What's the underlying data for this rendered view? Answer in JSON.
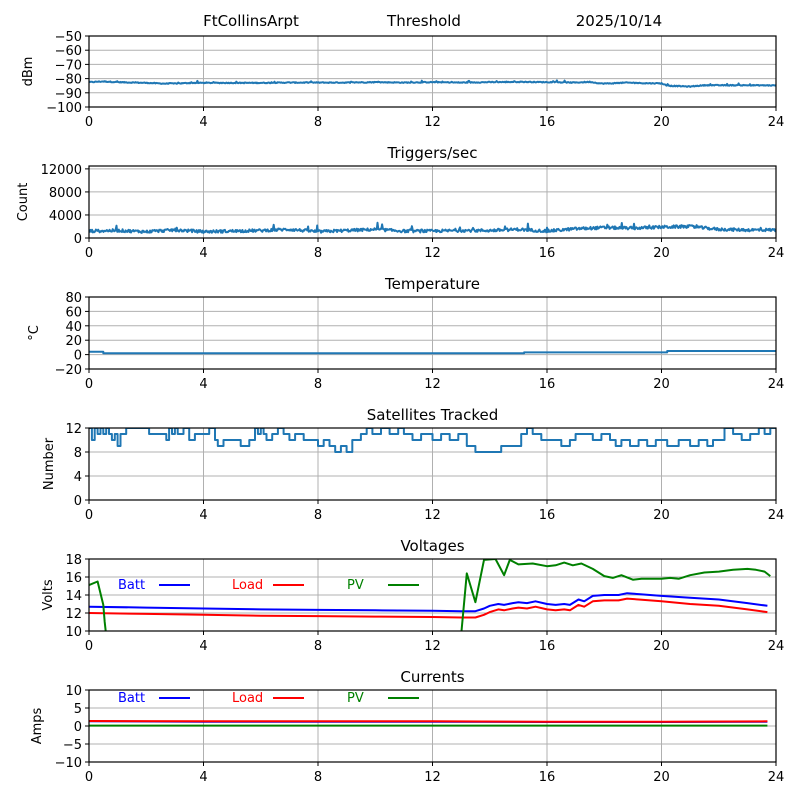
{
  "header": {
    "station": "FtCollinsArpt",
    "metric": "Threshold",
    "date": "2025/10/14"
  },
  "colors": {
    "series_default": "#1f77b4",
    "batt": "#0000ff",
    "load": "#ff0000",
    "pv": "#008000",
    "grid": "#b0b0b0"
  },
  "chart_data": [
    {
      "id": "threshold",
      "type": "line",
      "title": "",
      "xlabel": "",
      "ylabel": "dBm",
      "xlim": [
        0,
        24
      ],
      "ylim": [
        -100,
        -50
      ],
      "xticks": [
        0,
        4,
        8,
        12,
        16,
        20,
        24
      ],
      "yticks": [
        -100,
        -90,
        -80,
        -70,
        -60,
        -50
      ],
      "ytick_labels": [
        "−100",
        "−90",
        "−80",
        "−70",
        "−60",
        "−50"
      ],
      "grid": true,
      "noise": 0.6,
      "series": [
        {
          "name": "Threshold",
          "color": "#1f77b4",
          "x": [
            0,
            0.5,
            1,
            2,
            2.6,
            3,
            3.6,
            4,
            5,
            6,
            7,
            8,
            9,
            10,
            11,
            12,
            13,
            14,
            15,
            16,
            17,
            17.5,
            17.9,
            18.3,
            18.8,
            19.5,
            20,
            20.2,
            20.6,
            21,
            21.3,
            21.6,
            22,
            23,
            24
          ],
          "y": [
            -82.5,
            -82,
            -82.5,
            -83,
            -83.5,
            -83.5,
            -83,
            -83,
            -83,
            -83,
            -82.8,
            -82.8,
            -82.8,
            -82.5,
            -82.8,
            -82.5,
            -82.8,
            -82.5,
            -82.3,
            -82.5,
            -82.8,
            -82.3,
            -83.5,
            -83.3,
            -82.8,
            -83.3,
            -83.3,
            -85,
            -85.3,
            -85.6,
            -85,
            -84.6,
            -84.7,
            -84.7,
            -84.8
          ]
        }
      ]
    },
    {
      "id": "triggers",
      "type": "line",
      "title": "Triggers/sec",
      "xlabel": "",
      "ylabel": "Count",
      "xlim": [
        0,
        24
      ],
      "ylim": [
        0,
        12500
      ],
      "xticks": [
        0,
        4,
        8,
        12,
        16,
        20,
        24
      ],
      "yticks": [
        0,
        4000,
        8000,
        12000
      ],
      "ytick_labels": [
        "0",
        "4000",
        "8000",
        "12000"
      ],
      "grid": true,
      "noise": 500,
      "series": [
        {
          "name": "Triggers/sec",
          "color": "#1f77b4",
          "x": [
            0,
            1,
            2,
            3,
            4,
            5,
            6,
            7,
            8,
            9,
            10,
            11,
            12,
            13,
            14,
            15,
            16,
            17,
            18,
            19,
            20,
            21,
            22,
            23,
            24
          ],
          "y": [
            1200,
            1300,
            1100,
            1400,
            1100,
            1200,
            1300,
            1500,
            1100,
            1300,
            1500,
            1200,
            1200,
            1300,
            1300,
            1500,
            1200,
            1600,
            1800,
            1700,
            1900,
            2000,
            1500,
            1400,
            1400
          ]
        }
      ]
    },
    {
      "id": "temperature",
      "type": "line",
      "title": "Temperature",
      "xlabel": "",
      "ylabel": "°C",
      "xlim": [
        0,
        24
      ],
      "ylim": [
        -20,
        80
      ],
      "xticks": [
        0,
        4,
        8,
        12,
        16,
        20,
        24
      ],
      "yticks": [
        -20,
        0,
        20,
        40,
        60,
        80
      ],
      "ytick_labels": [
        "−20",
        "0",
        "20",
        "40",
        "60",
        "80"
      ],
      "grid": true,
      "noise": 0,
      "series": [
        {
          "name": "Temperature",
          "color": "#1f77b4",
          "x": [
            0,
            0.5,
            0.5,
            15.2,
            15.2,
            20.2,
            20.2,
            24
          ],
          "y": [
            4,
            4,
            2,
            2,
            3,
            3,
            5,
            5
          ]
        }
      ]
    },
    {
      "id": "satellites",
      "type": "line",
      "title": "Satellites Tracked",
      "xlabel": "",
      "ylabel": "Number",
      "xlim": [
        0,
        24
      ],
      "ylim": [
        0,
        12
      ],
      "xticks": [
        0,
        4,
        8,
        12,
        16,
        20,
        24
      ],
      "yticks": [
        0,
        4,
        8,
        12
      ],
      "ytick_labels": [
        "0",
        "4",
        "8",
        "12"
      ],
      "grid": true,
      "noise": 0,
      "series": [
        {
          "name": "Satellites",
          "color": "#1f77b4",
          "x": [
            0,
            0.1,
            0.2,
            0.3,
            0.4,
            0.5,
            0.6,
            0.7,
            0.8,
            0.9,
            1.0,
            1.1,
            1.3,
            2.1,
            2.7,
            2.8,
            2.9,
            3.0,
            3.1,
            3.3,
            3.5,
            3.7,
            4.2,
            4.4,
            4.5,
            4.7,
            5.3,
            5.6,
            5.8,
            5.9,
            6.0,
            6.1,
            6.2,
            6.4,
            6.6,
            6.8,
            7.0,
            7.2,
            7.5,
            8.0,
            8.2,
            8.4,
            8.6,
            8.8,
            9.0,
            9.2,
            9.5,
            9.7,
            9.9,
            10.2,
            10.5,
            10.8,
            11.0,
            11.3,
            11.6,
            12.0,
            12.3,
            12.6,
            12.9,
            13.2,
            13.5,
            14.0,
            14.4,
            14.8,
            15.1,
            15.3,
            15.5,
            15.8,
            16.1,
            16.5,
            16.8,
            17.0,
            17.3,
            17.6,
            17.9,
            18.2,
            18.4,
            18.6,
            18.9,
            19.2,
            19.5,
            19.8,
            20.2,
            20.6,
            21.0,
            21.3,
            21.6,
            21.8,
            22.2,
            22.5,
            22.8,
            23.1,
            23.4,
            23.6,
            23.8,
            24
          ],
          "y": [
            12,
            10,
            12,
            11,
            12,
            11,
            12,
            11,
            10,
            11,
            9,
            11,
            12,
            11,
            10,
            12,
            11,
            12,
            11,
            12,
            10,
            11,
            12,
            10,
            9,
            10,
            9,
            10,
            12,
            11,
            12,
            11,
            10,
            11,
            12,
            11,
            10,
            11,
            10,
            9,
            10,
            9,
            8,
            9,
            8,
            10,
            11,
            12,
            11,
            12,
            11,
            12,
            11,
            10,
            11,
            10,
            11,
            10,
            11,
            9,
            8,
            8,
            9,
            9,
            11,
            12,
            11,
            10,
            10,
            9,
            10,
            11,
            11,
            10,
            11,
            10,
            9,
            10,
            9,
            10,
            9,
            10,
            9,
            10,
            9,
            10,
            9,
            10,
            12,
            11,
            10,
            11,
            12,
            11,
            12,
            12
          ]
        }
      ]
    },
    {
      "id": "voltages",
      "type": "line",
      "title": "Voltages",
      "xlabel": "",
      "ylabel": "Volts",
      "xlim": [
        0,
        24
      ],
      "ylim": [
        10,
        18
      ],
      "xticks": [
        0,
        4,
        8,
        12,
        16,
        20,
        24
      ],
      "yticks": [
        10,
        12,
        14,
        16,
        18
      ],
      "ytick_labels": [
        "10",
        "12",
        "14",
        "16",
        "18"
      ],
      "grid": true,
      "noise": 0,
      "legend": {
        "placement": "top-left-inline",
        "entries": [
          "Batt",
          "Load",
          "PV"
        ]
      },
      "series": [
        {
          "name": "Batt",
          "color": "#0000ff",
          "x": [
            0,
            2,
            4,
            6,
            8,
            10,
            12,
            13,
            13.5,
            13.8,
            14.0,
            14.3,
            14.5,
            14.8,
            15.0,
            15.3,
            15.6,
            16.0,
            16.3,
            16.6,
            16.8,
            17.1,
            17.3,
            17.6,
            18.0,
            18.5,
            18.8,
            19.2,
            20.0,
            21.0,
            22.0,
            23.0,
            23.7
          ],
          "y": [
            12.7,
            12.6,
            12.5,
            12.4,
            12.35,
            12.3,
            12.25,
            12.2,
            12.2,
            12.5,
            12.8,
            13.0,
            12.9,
            13.1,
            13.2,
            13.1,
            13.3,
            13.0,
            12.9,
            13.0,
            12.9,
            13.5,
            13.3,
            13.9,
            14.0,
            14.0,
            14.2,
            14.1,
            13.9,
            13.7,
            13.5,
            13.1,
            12.8
          ]
        },
        {
          "name": "Load",
          "color": "#ff0000",
          "x": [
            0,
            2,
            4,
            6,
            8,
            10,
            12,
            13,
            13.5,
            13.8,
            14.0,
            14.3,
            14.5,
            14.8,
            15.0,
            15.3,
            15.6,
            16.0,
            16.3,
            16.6,
            16.8,
            17.1,
            17.3,
            17.6,
            18.0,
            18.5,
            18.8,
            19.2,
            20.0,
            21.0,
            22.0,
            23.0,
            23.7
          ],
          "y": [
            12.0,
            11.9,
            11.8,
            11.7,
            11.65,
            11.6,
            11.55,
            11.5,
            11.5,
            11.8,
            12.1,
            12.4,
            12.3,
            12.5,
            12.6,
            12.5,
            12.7,
            12.4,
            12.3,
            12.4,
            12.3,
            12.9,
            12.7,
            13.3,
            13.4,
            13.4,
            13.6,
            13.5,
            13.3,
            13.0,
            12.8,
            12.4,
            12.1
          ]
        },
        {
          "name": "PV",
          "color": "#008000",
          "x": [
            0,
            0.3,
            0.5,
            0.55,
            0.6,
            13.0,
            13.2,
            13.5,
            13.8,
            14.2,
            14.5,
            14.7,
            15.0,
            15.5,
            16.0,
            16.3,
            16.6,
            16.9,
            17.2,
            17.6,
            18.0,
            18.3,
            18.6,
            19.0,
            19.3,
            19.6,
            20.0,
            20.3,
            20.6,
            21.0,
            21.5,
            22.0,
            22.5,
            23.0,
            23.3,
            23.6,
            23.8
          ],
          "y": [
            15.1,
            15.5,
            12.9,
            11,
            9.5,
            9.5,
            16.4,
            13.2,
            17.9,
            18.0,
            16.2,
            17.9,
            17.4,
            17.5,
            17.2,
            17.3,
            17.6,
            17.3,
            17.5,
            16.9,
            16.1,
            15.9,
            16.2,
            15.7,
            15.8,
            15.8,
            15.8,
            15.9,
            15.8,
            16.2,
            16.5,
            16.6,
            16.8,
            16.9,
            16.8,
            16.6,
            16.1
          ]
        }
      ]
    },
    {
      "id": "currents",
      "type": "line",
      "title": "Currents",
      "xlabel": "",
      "ylabel": "Amps",
      "xlim": [
        0,
        24
      ],
      "ylim": [
        -10,
        10
      ],
      "xticks": [
        0,
        4,
        8,
        12,
        16,
        20,
        24
      ],
      "yticks": [
        -10,
        -5,
        0,
        5,
        10
      ],
      "ytick_labels": [
        "−10",
        "−5",
        "0",
        "5",
        "10"
      ],
      "grid": true,
      "noise": 0,
      "legend": {
        "placement": "top-left-inline",
        "entries": [
          "Batt",
          "Load",
          "PV"
        ]
      },
      "series": [
        {
          "name": "Batt",
          "color": "#0000ff",
          "x": [
            0,
            4,
            8,
            12,
            16,
            20,
            23.7
          ],
          "y": [
            1.3,
            1.2,
            1.2,
            1.2,
            1.1,
            1.1,
            1.2
          ]
        },
        {
          "name": "Load",
          "color": "#ff0000",
          "x": [
            0,
            4,
            8,
            12,
            16,
            20,
            23.7
          ],
          "y": [
            1.4,
            1.3,
            1.3,
            1.3,
            1.2,
            1.2,
            1.3
          ]
        },
        {
          "name": "PV",
          "color": "#008000",
          "x": [
            0,
            4,
            8,
            12,
            16,
            20,
            23.7
          ],
          "y": [
            0.1,
            0.1,
            0.1,
            0.1,
            0.1,
            0.1,
            0.1
          ]
        }
      ]
    }
  ]
}
